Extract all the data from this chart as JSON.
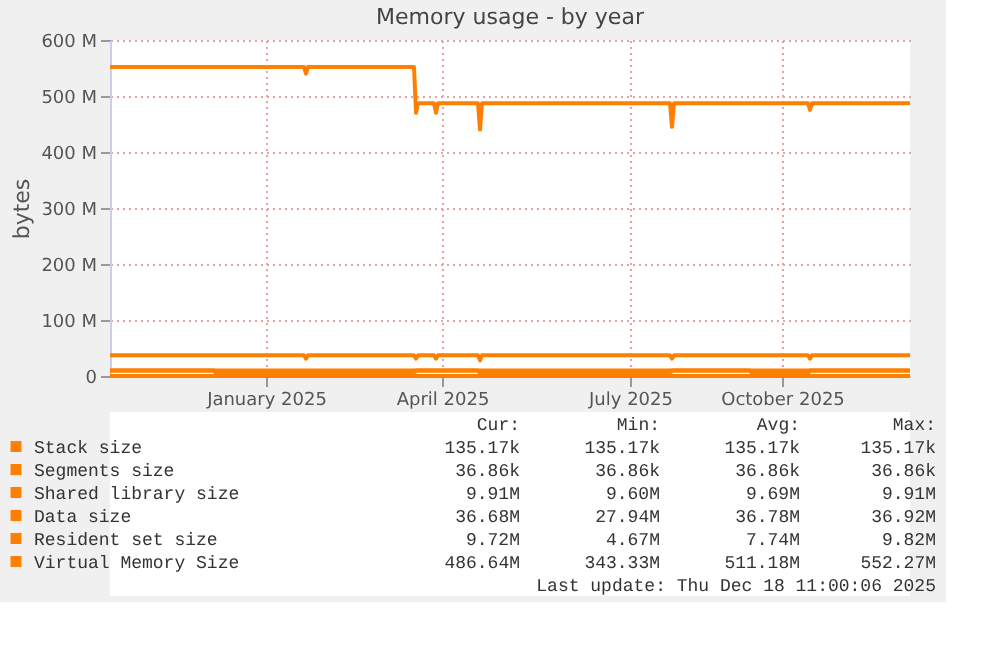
{
  "chart_data": {
    "type": "line",
    "title": "Memory usage - by year",
    "ylabel": "bytes",
    "xlim": [
      "2024-11-13",
      "2025-12-18"
    ],
    "xticks": [
      {
        "value": "2025-01-30",
        "label": "January 2025"
      },
      {
        "value": "2025-04-28",
        "label": "April 2025"
      },
      {
        "value": "2025-07-31",
        "label": "July 2025"
      },
      {
        "value": "2025-10-15",
        "label": "October 2025"
      }
    ],
    "ylim": [
      0,
      600
    ],
    "yticks": [
      {
        "value": 0,
        "label": "0"
      },
      {
        "value": 100,
        "label": "100 M"
      },
      {
        "value": 200,
        "label": "200 M"
      },
      {
        "value": 300,
        "label": "300 M"
      },
      {
        "value": 400,
        "label": "400 M"
      },
      {
        "value": 500,
        "label": "500 M"
      },
      {
        "value": 600,
        "label": "600 M"
      }
    ],
    "grid": true,
    "legend": "bottom",
    "line_style": "solid",
    "marker": "none",
    "series": [
      {
        "name": "Stack size",
        "color": "#ff7f00",
        "x": [
          "2024-11-13",
          "2025-12-18"
        ],
        "values": [
          0.1,
          0.1
        ]
      },
      {
        "name": "Segments size",
        "color": "#ff7f00",
        "values": [
          null,
          null
        ]
      },
      {
        "name": "Shared library size",
        "color": "#ff7f00",
        "x": [
          "2024-11-13",
          "2025-12-18"
        ],
        "values": [
          9.9,
          9.9
        ]
      },
      {
        "name": "Data size",
        "color": "#ff7f00",
        "x": [
          "2024-11-13",
          "2025-02-18",
          "2025-02-19",
          "2025-02-20",
          "2025-04-14",
          "2025-04-15",
          "2025-04-16",
          "2025-04-24",
          "2025-04-25",
          "2025-04-26",
          "2025-05-16",
          "2025-05-17",
          "2025-05-18",
          "2025-08-20",
          "2025-08-21",
          "2025-08-22",
          "2025-10-28",
          "2025-10-29",
          "2025-10-30",
          "2025-12-18"
        ],
        "values": [
          37,
          37,
          31,
          37,
          37,
          31,
          37,
          37,
          31,
          37,
          37,
          28,
          37,
          37,
          31,
          37,
          37,
          31,
          37,
          37
        ]
      },
      {
        "name": "Resident set size",
        "color": "#ff7f00",
        "x": [
          "2024-11-13",
          "2025-01-04",
          "2025-01-05",
          "2025-04-14",
          "2025-04-15",
          "2025-05-16",
          "2025-05-17",
          "2025-08-20",
          "2025-08-21",
          "2025-09-29",
          "2025-09-30",
          "2025-10-28",
          "2025-10-29",
          "2025-12-18"
        ],
        "values": [
          9.7,
          9.7,
          4.7,
          4.7,
          9.7,
          9.7,
          4.7,
          4.7,
          9.7,
          9.7,
          4.7,
          4.7,
          9.7,
          9.7
        ]
      },
      {
        "name": "Virtual Memory Size",
        "color": "#ff7f00",
        "x": [
          "2024-11-13",
          "2025-02-18",
          "2025-02-19",
          "2025-02-20",
          "2025-04-14",
          "2025-04-15",
          "2025-04-16",
          "2025-04-24",
          "2025-04-25",
          "2025-04-26",
          "2025-05-16",
          "2025-05-17",
          "2025-05-18",
          "2025-08-20",
          "2025-08-21",
          "2025-08-22",
          "2025-10-28",
          "2025-10-29",
          "2025-10-30",
          "2025-12-18"
        ],
        "values": [
          552,
          552,
          540,
          552,
          552,
          470,
          487,
          487,
          470,
          487,
          487,
          440,
          487,
          487,
          445,
          487,
          487,
          475,
          487,
          487
        ]
      }
    ],
    "annotations": [
      "Cur:",
      "Min:",
      "Avg:",
      "Max:",
      "135.17k",
      "135.17k",
      "135.17k",
      "135.17k",
      "36.86k",
      "36.86k",
      "36.86k",
      "36.86k",
      "9.91M",
      "9.60M",
      "9.69M",
      "9.91M",
      "36.68M",
      "27.94M",
      "36.78M",
      "36.92M",
      "9.72M",
      "4.67M",
      "7.74M",
      "9.82M",
      "486.64M",
      "343.33M",
      "511.18M",
      "552.27M",
      "Last update: Thu Dec 18 11:00:06 2025"
    ]
  }
}
